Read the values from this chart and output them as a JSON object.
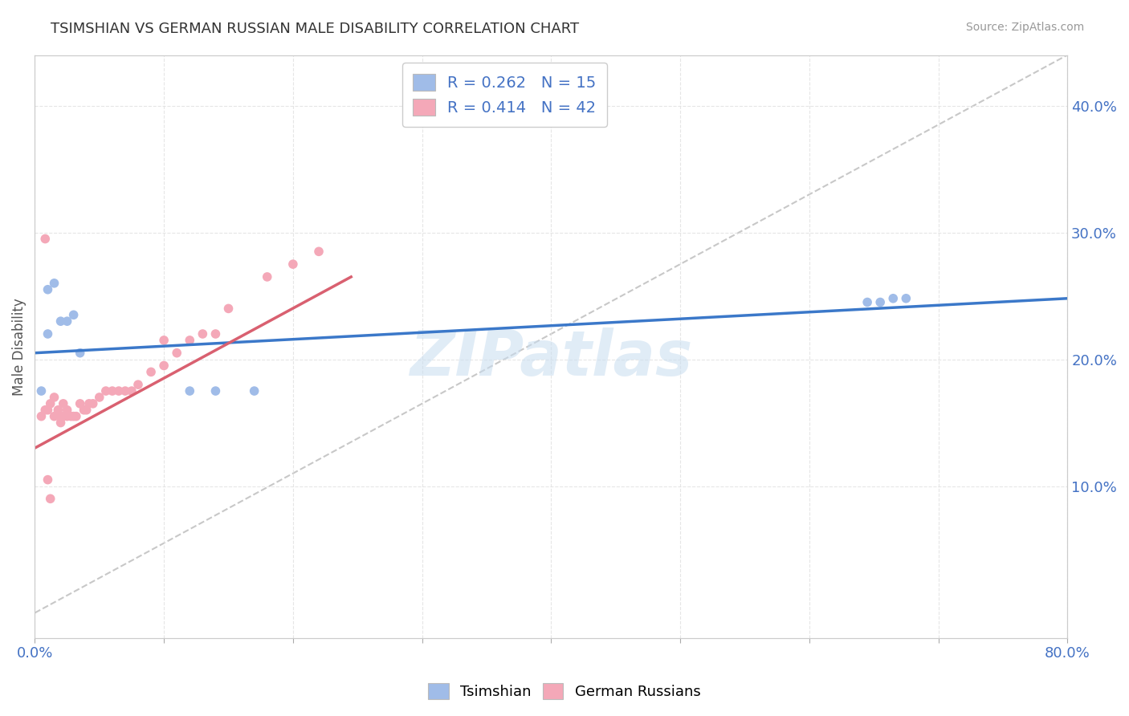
{
  "title": "TSIMSHIAN VS GERMAN RUSSIAN MALE DISABILITY CORRELATION CHART",
  "source": "Source: ZipAtlas.com",
  "xlabel": "",
  "ylabel": "Male Disability",
  "xlim": [
    0.0,
    0.8
  ],
  "ylim": [
    -0.02,
    0.44
  ],
  "xticks": [
    0.0,
    0.1,
    0.2,
    0.3,
    0.4,
    0.5,
    0.6,
    0.7,
    0.8
  ],
  "ytick_positions": [
    0.1,
    0.2,
    0.3,
    0.4
  ],
  "ytick_labels": [
    "10.0%",
    "20.0%",
    "30.0%",
    "40.0%"
  ],
  "tsimshian_R": 0.262,
  "tsimshian_N": 15,
  "german_russian_R": 0.414,
  "german_russian_N": 42,
  "tsimshian_color": "#a0bce8",
  "german_russian_color": "#f4a8b8",
  "tsimshian_line_color": "#3b78c9",
  "german_russian_line_color": "#d96070",
  "diagonal_color": "#c8c8c8",
  "watermark_color": "#c8ddf0",
  "background_color": "#ffffff",
  "grid_color": "#e0e0e0",
  "tsimshian_x": [
    0.01,
    0.015,
    0.01,
    0.02,
    0.025,
    0.03,
    0.035,
    0.005,
    0.14,
    0.17,
    0.645,
    0.655,
    0.665,
    0.675,
    0.12
  ],
  "tsimshian_y": [
    0.255,
    0.26,
    0.22,
    0.23,
    0.23,
    0.235,
    0.205,
    0.175,
    0.175,
    0.175,
    0.245,
    0.245,
    0.248,
    0.248,
    0.175
  ],
  "german_russian_x": [
    0.005,
    0.008,
    0.01,
    0.012,
    0.015,
    0.015,
    0.018,
    0.02,
    0.02,
    0.022,
    0.022,
    0.025,
    0.025,
    0.028,
    0.03,
    0.032,
    0.035,
    0.038,
    0.04,
    0.042,
    0.045,
    0.05,
    0.055,
    0.06,
    0.065,
    0.07,
    0.075,
    0.08,
    0.09,
    0.1,
    0.11,
    0.12,
    0.13,
    0.14,
    0.15,
    0.18,
    0.2,
    0.008,
    0.01,
    0.012,
    0.22,
    0.1
  ],
  "german_russian_y": [
    0.155,
    0.16,
    0.16,
    0.165,
    0.155,
    0.17,
    0.16,
    0.15,
    0.155,
    0.155,
    0.165,
    0.155,
    0.16,
    0.155,
    0.155,
    0.155,
    0.165,
    0.16,
    0.16,
    0.165,
    0.165,
    0.17,
    0.175,
    0.175,
    0.175,
    0.175,
    0.175,
    0.18,
    0.19,
    0.195,
    0.205,
    0.215,
    0.22,
    0.22,
    0.24,
    0.265,
    0.275,
    0.295,
    0.105,
    0.09,
    0.285,
    0.215
  ],
  "ts_trend_x0": 0.0,
  "ts_trend_y0": 0.205,
  "ts_trend_x1": 0.8,
  "ts_trend_y1": 0.248,
  "gr_trend_x0": 0.0,
  "gr_trend_y0": 0.13,
  "gr_trend_x1": 0.245,
  "gr_trend_y1": 0.265
}
